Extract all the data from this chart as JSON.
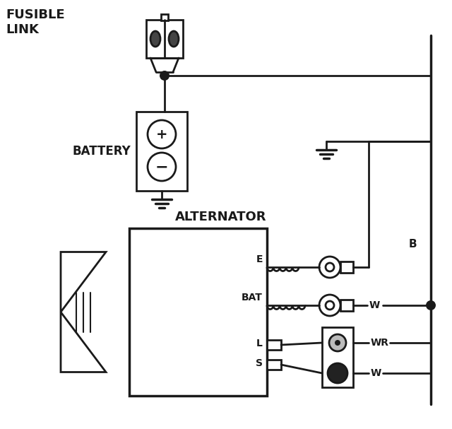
{
  "bg_color": "white",
  "line_color": "#1a1a1a",
  "label_fusible": "FUSIBLE\nLINK",
  "label_battery": "BATTERY",
  "label_alternator": "ALTERNATOR",
  "label_B": "B",
  "label_E": "E",
  "label_BAT": "BAT",
  "label_L": "L",
  "label_S": "S",
  "label_WR": "WR",
  "label_W1": "W",
  "label_W2": "W",
  "figsize": [
    6.4,
    6.07
  ],
  "dpi": 100,
  "lw": 2.0
}
